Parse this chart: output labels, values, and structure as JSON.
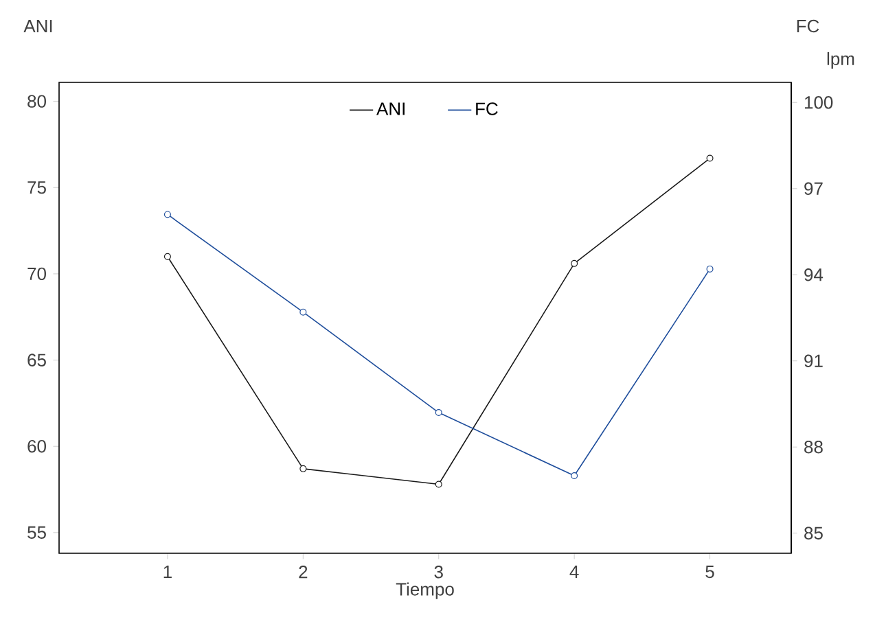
{
  "chart_data": {
    "type": "line",
    "xlabel": "Tiempo",
    "ylabel": "ANI",
    "y2label": "FC",
    "annotations": [
      "lpm"
    ],
    "x": [
      1,
      2,
      3,
      4,
      5
    ],
    "xlim": [
      0.2,
      5.6
    ],
    "xticks": [
      1,
      2,
      3,
      4,
      5
    ],
    "ylim": [
      53.8,
      81.1
    ],
    "yticks": [
      55,
      60,
      65,
      70,
      75,
      80
    ],
    "y2lim": [
      84.3,
      100.7
    ],
    "y2ticks": [
      85,
      88,
      91,
      94,
      97,
      100
    ],
    "series": [
      {
        "name": "ANI",
        "color": "#1a1a1a",
        "values": [
          71.0,
          58.7,
          57.8,
          70.6,
          76.7
        ]
      },
      {
        "name": "FC",
        "color": "#1f4e9c",
        "axis": "y2",
        "values": [
          96.1,
          92.7,
          89.2,
          87.0,
          94.2
        ]
      }
    ],
    "legend": "top",
    "marker": "circle",
    "line_style": "solid",
    "grid": false
  }
}
